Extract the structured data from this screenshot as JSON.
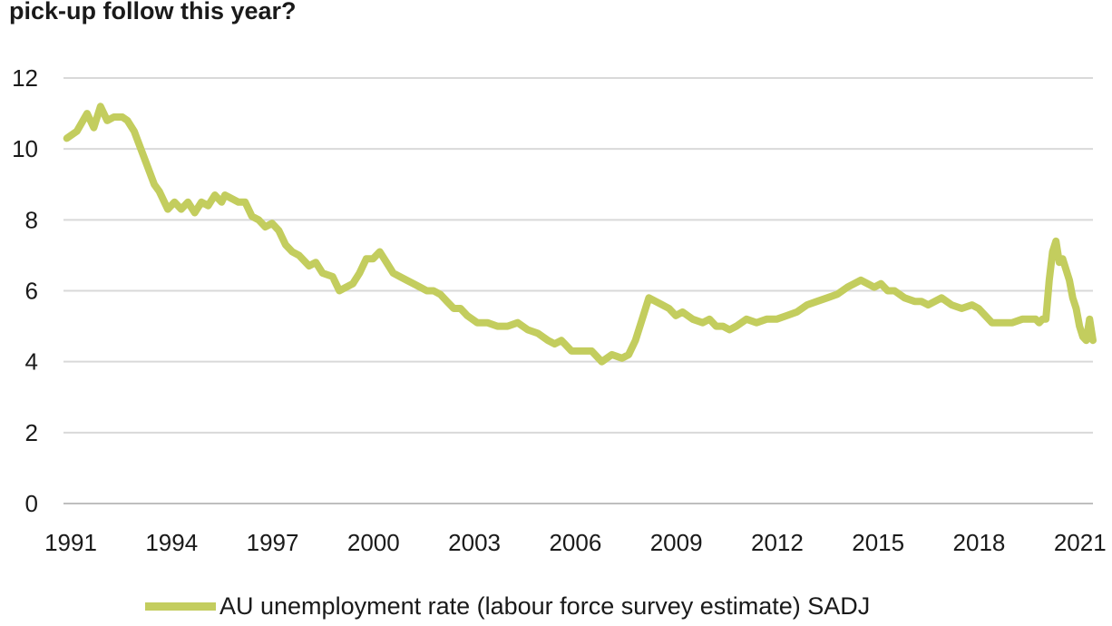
{
  "title": "pick-up follow this year?",
  "colors": {
    "series": "#c3cd5e",
    "grid": "#d9d9d9",
    "axis": "#bfbfbf"
  },
  "chart_data": {
    "type": "line",
    "title": "pick-up follow this year?",
    "xlabel": "",
    "ylabel": "",
    "xlim": [
      1991,
      2021.6
    ],
    "ylim": [
      0,
      12
    ],
    "yticks": [
      0,
      2,
      4,
      6,
      8,
      10,
      12
    ],
    "xticks": [
      1991,
      1994,
      1997,
      2000,
      2003,
      2006,
      2009,
      2012,
      2015,
      2018,
      2021
    ],
    "grid": true,
    "legend": "bottom",
    "series": [
      {
        "name": "AU unemployment rate (labour force survey estimate) SADJ",
        "x": [
          1991.1,
          1991.4,
          1991.7,
          1991.9,
          1992.1,
          1992.3,
          1992.5,
          1992.75,
          1992.9,
          1993.1,
          1993.3,
          1993.5,
          1993.7,
          1993.85,
          1994.1,
          1994.3,
          1994.5,
          1994.7,
          1994.9,
          1995.1,
          1995.3,
          1995.5,
          1995.7,
          1995.8,
          1996.0,
          1996.2,
          1996.4,
          1996.6,
          1996.8,
          1997.0,
          1997.2,
          1997.4,
          1997.6,
          1997.8,
          1998.0,
          1998.3,
          1998.5,
          1998.7,
          1999.0,
          1999.2,
          1999.4,
          1999.6,
          1999.8,
          2000.0,
          2000.2,
          2000.4,
          2000.6,
          2000.8,
          2001.0,
          2001.2,
          2001.4,
          2001.6,
          2001.8,
          2002.0,
          2002.2,
          2002.4,
          2002.6,
          2002.8,
          2003.0,
          2003.3,
          2003.6,
          2003.9,
          2004.2,
          2004.5,
          2004.8,
          2005.1,
          2005.4,
          2005.6,
          2005.8,
          2006.1,
          2006.4,
          2006.7,
          2007.0,
          2007.3,
          2007.6,
          2007.8,
          2008.0,
          2008.2,
          2008.4,
          2008.6,
          2008.8,
          2009.0,
          2009.2,
          2009.4,
          2009.7,
          2010.0,
          2010.2,
          2010.4,
          2010.6,
          2010.8,
          2011.0,
          2011.3,
          2011.6,
          2011.9,
          2012.2,
          2012.5,
          2012.8,
          2013.1,
          2013.4,
          2013.7,
          2014.0,
          2014.3,
          2014.5,
          2014.7,
          2014.9,
          2015.1,
          2015.3,
          2015.5,
          2015.7,
          2016.0,
          2016.3,
          2016.5,
          2016.7,
          2016.9,
          2017.1,
          2017.4,
          2017.7,
          2018.0,
          2018.2,
          2018.4,
          2018.6,
          2018.9,
          2019.2,
          2019.5,
          2019.7,
          2019.9,
          2020.0,
          2020.1,
          2020.2,
          2020.3,
          2020.4,
          2020.5,
          2020.6,
          2020.7,
          2020.8,
          2020.9,
          2021.0,
          2021.1,
          2021.2,
          2021.3,
          2021.4,
          2021.5,
          2021.6
        ],
        "y": [
          10.3,
          10.5,
          11.0,
          10.6,
          11.2,
          10.8,
          10.9,
          10.9,
          10.8,
          10.5,
          10.0,
          9.5,
          9.0,
          8.8,
          8.3,
          8.5,
          8.3,
          8.5,
          8.2,
          8.5,
          8.4,
          8.7,
          8.5,
          8.7,
          8.6,
          8.5,
          8.5,
          8.1,
          8.0,
          7.8,
          7.9,
          7.7,
          7.3,
          7.1,
          7.0,
          6.7,
          6.8,
          6.5,
          6.4,
          6.0,
          6.1,
          6.2,
          6.5,
          6.9,
          6.9,
          7.1,
          6.8,
          6.5,
          6.4,
          6.3,
          6.2,
          6.1,
          6.0,
          6.0,
          5.9,
          5.7,
          5.5,
          5.5,
          5.3,
          5.1,
          5.1,
          5.0,
          5.0,
          5.1,
          4.9,
          4.8,
          4.6,
          4.5,
          4.6,
          4.3,
          4.3,
          4.3,
          4.0,
          4.2,
          4.1,
          4.2,
          4.6,
          5.2,
          5.8,
          5.7,
          5.6,
          5.5,
          5.3,
          5.4,
          5.2,
          5.1,
          5.2,
          5.0,
          5.0,
          4.9,
          5.0,
          5.2,
          5.1,
          5.2,
          5.2,
          5.3,
          5.4,
          5.6,
          5.7,
          5.8,
          5.9,
          6.1,
          6.2,
          6.3,
          6.2,
          6.1,
          6.2,
          6.0,
          6.0,
          5.8,
          5.7,
          5.7,
          5.6,
          5.7,
          5.8,
          5.6,
          5.5,
          5.6,
          5.5,
          5.3,
          5.1,
          5.1,
          5.1,
          5.2,
          5.2,
          5.2,
          5.1,
          5.2,
          5.2,
          6.3,
          7.1,
          7.4,
          6.8,
          6.9,
          6.6,
          6.3,
          5.8,
          5.5,
          5.0,
          4.7,
          4.6,
          5.2,
          4.6
        ]
      }
    ]
  }
}
